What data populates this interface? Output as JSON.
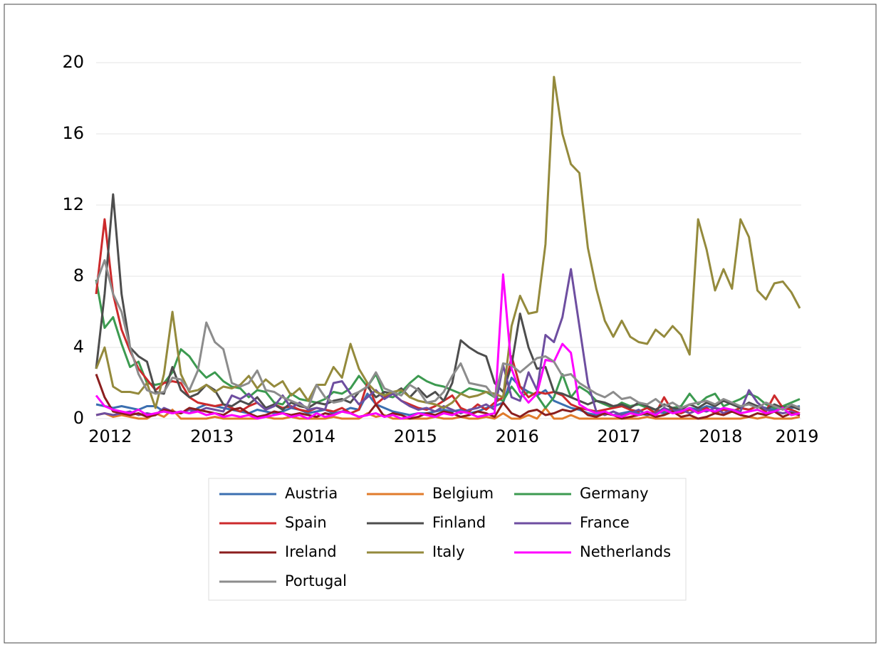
{
  "chart_data": {
    "type": "line",
    "categories": [
      null,
      null,
      "2012",
      null,
      null,
      null,
      null,
      null,
      null,
      null,
      null,
      null,
      null,
      null,
      "2013",
      null,
      null,
      null,
      null,
      null,
      null,
      null,
      null,
      null,
      null,
      null,
      "2014",
      null,
      null,
      null,
      null,
      null,
      null,
      null,
      null,
      null,
      null,
      null,
      "2015",
      null,
      null,
      null,
      null,
      null,
      null,
      null,
      null,
      null,
      null,
      null,
      "2016",
      null,
      null,
      null,
      null,
      null,
      null,
      null,
      null,
      null,
      null,
      null,
      "2017",
      null,
      null,
      null,
      null,
      null,
      null,
      null,
      null,
      null,
      null,
      null,
      "2018",
      null,
      null,
      null,
      null,
      null,
      null,
      null,
      null,
      "2019"
    ],
    "ylim": [
      0,
      20
    ],
    "yticks": [
      0,
      4,
      8,
      12,
      16,
      20
    ],
    "grid": true,
    "legend": "bottom",
    "series": [
      {
        "name": "Austria",
        "color": "#3b6fb0",
        "values": [
          0.8,
          0.7,
          0.6,
          0.7,
          0.6,
          0.5,
          0.7,
          0.7,
          0.4,
          0.3,
          0.4,
          0.3,
          0.6,
          0.8,
          0.7,
          0.6,
          0.5,
          0.4,
          0.3,
          0.5,
          0.4,
          0.3,
          0.4,
          0.6,
          0.5,
          0.3,
          0.4,
          0.5,
          0.3,
          0.4,
          0.6,
          0.5,
          1.4,
          0.8,
          0.6,
          0.4,
          0.3,
          0.2,
          0.3,
          0.3,
          0.4,
          0.5,
          0.4,
          0.5,
          0.3,
          0.4,
          0.6,
          0.7,
          0.9,
          2.3,
          1.8,
          1.5,
          1.3,
          1.6,
          1.0,
          0.8,
          0.6,
          0.5,
          0.3,
          0.2,
          0.3,
          0.2,
          0.3,
          0.4,
          0.3,
          0.2,
          0.4,
          0.3,
          0.5,
          0.4,
          0.6,
          0.5,
          0.7,
          0.6,
          0.5,
          0.4,
          0.6,
          0.5,
          0.7,
          0.6,
          0.5,
          0.7,
          0.6,
          0.7
        ]
      },
      {
        "name": "Belgium",
        "color": "#e07b2b",
        "values": [
          0.2,
          0.3,
          0.1,
          0.2,
          0.1,
          0,
          0,
          0.3,
          0.1,
          0.5,
          0,
          0,
          0,
          0,
          0.1,
          0,
          0,
          0,
          0,
          0,
          0.1,
          0,
          0,
          0.1,
          0,
          0,
          0,
          0,
          0.1,
          0,
          0,
          0,
          0.3,
          0.1,
          0.2,
          0,
          0,
          0,
          0,
          0,
          0.1,
          0,
          0,
          0.1,
          0,
          0,
          0.1,
          0,
          0.3,
          0,
          0,
          0.2,
          0,
          0.6,
          0,
          0,
          0.2,
          0,
          0,
          0,
          0,
          0,
          0,
          0,
          0,
          0.1,
          0,
          0,
          0,
          0,
          0,
          0,
          0,
          0,
          0,
          0,
          0,
          0.1,
          0,
          0.1,
          0,
          0,
          0,
          0.1
        ]
      },
      {
        "name": "Germany",
        "color": "#3c9a50",
        "values": [
          7.8,
          5.1,
          5.7,
          4.2,
          2.9,
          3.2,
          2.0,
          1.9,
          2.0,
          2.6,
          3.9,
          3.5,
          2.8,
          2.3,
          2.6,
          2.1,
          1.8,
          1.7,
          1.2,
          1.6,
          1.5,
          0.9,
          0.8,
          1.4,
          1.1,
          1.0,
          0.9,
          1.1,
          1.5,
          1.4,
          1.7,
          2.4,
          1.8,
          2.5,
          1.3,
          1.2,
          1.5,
          2.0,
          2.4,
          2.1,
          1.9,
          1.8,
          1.6,
          1.4,
          1.7,
          1.6,
          1.5,
          1.2,
          1.0,
          1.8,
          1.2,
          1.5,
          1.3,
          0.6,
          1.2,
          2.5,
          1.2,
          1.8,
          1.5,
          1.0,
          0.8,
          0.6,
          0.9,
          0.7,
          0.8,
          0.6,
          0.5,
          0.4,
          0.6,
          0.7,
          1.4,
          0.8,
          1.2,
          1.4,
          0.7,
          0.9,
          1.1,
          1.4,
          1.2,
          0.8,
          0.6,
          0.7,
          0.9,
          1.1
        ]
      },
      {
        "name": "Spain",
        "color": "#cc2a2c",
        "values": [
          7.0,
          11.2,
          7.0,
          5.0,
          3.8,
          2.8,
          2.2,
          1.6,
          2.0,
          2.1,
          2.0,
          1.2,
          0.9,
          0.8,
          0.7,
          0.8,
          0.6,
          0.4,
          0.7,
          0.9,
          0.5,
          0.8,
          0.6,
          0.7,
          0.5,
          0.4,
          0.6,
          0.5,
          0.4,
          0.6,
          0.3,
          0.5,
          2.0,
          0.8,
          1.2,
          1.4,
          1.0,
          0.8,
          0.6,
          0.5,
          0.7,
          1.0,
          1.3,
          0.6,
          0.4,
          0.8,
          0.5,
          0.9,
          1.2,
          3.5,
          1.8,
          1.2,
          1.5,
          1.4,
          1.5,
          1.3,
          0.8,
          0.6,
          0.5,
          0.4,
          0.5,
          0.6,
          0.7,
          0.5,
          0.4,
          0.6,
          0.3,
          1.2,
          0.4,
          0.3,
          0.5,
          0.4,
          0.6,
          0.3,
          0.5,
          0.4,
          0.6,
          0.5,
          0.7,
          0.4,
          1.3,
          0.6,
          0.5,
          0.3
        ]
      },
      {
        "name": "Finland",
        "color": "#4d4d4d",
        "values": [
          2.8,
          7.0,
          12.6,
          7.0,
          4.0,
          3.5,
          3.2,
          1.5,
          1.4,
          2.9,
          1.6,
          1.2,
          1.4,
          1.9,
          1.6,
          0.8,
          0.7,
          1.0,
          0.8,
          1.2,
          0.6,
          0.8,
          0.5,
          0.9,
          0.7,
          0.6,
          0.9,
          0.8,
          1.0,
          1.1,
          0.9,
          1.5,
          1.8,
          1.2,
          1.5,
          1.4,
          1.7,
          1.2,
          1.7,
          1.2,
          1.5,
          1.0,
          2.0,
          4.4,
          4.0,
          3.7,
          3.5,
          2.0,
          1.5,
          3.0,
          5.9,
          4.0,
          2.8,
          2.9,
          1.5,
          1.4,
          1.2,
          1.0,
          0.8,
          1.0,
          0.9,
          0.7,
          0.8,
          0.6,
          0.9,
          0.7,
          0.5,
          0.8,
          0.6,
          0.5,
          0.8,
          0.6,
          0.9,
          0.7,
          1.0,
          0.8,
          0.6,
          0.9,
          0.7,
          0.5,
          0.8,
          0.6,
          0.7,
          0.5
        ]
      },
      {
        "name": "France",
        "color": "#6e4ea0",
        "values": [
          0.2,
          0.3,
          0.2,
          0.3,
          0.4,
          0.2,
          0.3,
          0.2,
          0.6,
          0.4,
          0.3,
          0.5,
          0.4,
          0.6,
          0.5,
          0.4,
          1.3,
          1.1,
          1.4,
          0.9,
          0.5,
          0.7,
          1.3,
          0.6,
          0.9,
          0.5,
          0.6,
          0.5,
          2.0,
          2.1,
          1.4,
          0.8,
          1.2,
          1.6,
          1.1,
          1.4,
          1.0,
          0.7,
          0.5,
          0.6,
          0.4,
          0.7,
          0.5,
          0.3,
          0.5,
          0.6,
          0.8,
          0.5,
          3.0,
          1.2,
          1.0,
          2.6,
          1.6,
          4.7,
          4.3,
          5.7,
          8.4,
          5.2,
          2.0,
          0.4,
          0.2,
          0.4,
          0.2,
          0.3,
          0.5,
          0.2,
          0.3,
          0.6,
          0.4,
          0.5,
          0.3,
          0.5,
          0.4,
          0.6,
          0.3,
          0.5,
          0.4,
          1.6,
          0.9,
          0.5,
          0.4,
          0.3,
          0.4,
          0.2
        ]
      },
      {
        "name": "Ireland",
        "color": "#8b1e1e",
        "values": [
          2.5,
          1.2,
          0.4,
          0.3,
          0.2,
          0.3,
          0.1,
          0.2,
          0.5,
          0.4,
          0.3,
          0.6,
          0.5,
          0.4,
          0.3,
          0.2,
          0.5,
          0.6,
          0.3,
          0.1,
          0.2,
          0.4,
          0.3,
          0.2,
          0.3,
          0.2,
          0.1,
          0.3,
          0.2,
          0.4,
          0.3,
          0.1,
          0.2,
          0.8,
          0.1,
          0.3,
          0.2,
          0,
          0.1,
          0.3,
          0.2,
          0.4,
          0.3,
          0.1,
          0.2,
          0.4,
          0.3,
          0.1,
          0.9,
          0.3,
          0.1,
          0.4,
          0.5,
          0.2,
          0.3,
          0.5,
          0.4,
          0.6,
          0.2,
          0.1,
          0.3,
          0.2,
          0,
          0.1,
          0.2,
          0.3,
          0.1,
          0.2,
          0.4,
          0.1,
          0.2,
          0,
          0.1,
          0.3,
          0.2,
          0.4,
          0.2,
          0.1,
          0.3,
          0.2,
          0.4,
          0.1,
          0.3,
          0.2
        ]
      },
      {
        "name": "Italy",
        "color": "#948a3c",
        "values": [
          2.8,
          4.0,
          1.8,
          1.5,
          1.5,
          1.4,
          2.0,
          0.6,
          2.5,
          6.0,
          2.5,
          1.5,
          1.6,
          1.9,
          1.5,
          1.8,
          1.7,
          1.9,
          2.4,
          1.7,
          2.2,
          1.8,
          2.1,
          1.3,
          1.7,
          1.0,
          1.9,
          1.9,
          2.9,
          2.3,
          4.2,
          2.8,
          2.0,
          1.5,
          1.3,
          1.5,
          1.6,
          1.2,
          1.0,
          0.9,
          0.8,
          0.6,
          0.9,
          1.4,
          1.2,
          1.3,
          1.5,
          1.4,
          1.2,
          5.2,
          6.9,
          5.9,
          6.0,
          9.8,
          19.2,
          16.0,
          14.3,
          13.8,
          9.6,
          7.3,
          5.5,
          4.6,
          5.5,
          4.6,
          4.3,
          4.2,
          5.0,
          4.6,
          5.2,
          4.7,
          3.6,
          11.2,
          9.5,
          7.2,
          8.4,
          7.3,
          11.2,
          10.2,
          7.2,
          6.7,
          7.6,
          7.7,
          7.1,
          6.2
        ]
      },
      {
        "name": "Netherlands",
        "color": "#ff00ff",
        "values": [
          1.3,
          0.7,
          0.5,
          0.4,
          0.3,
          0.5,
          0.2,
          0.3,
          0.4,
          0.3,
          0.4,
          0.3,
          0.4,
          0.2,
          0.3,
          0.1,
          0.2,
          0.1,
          0.2,
          0,
          0.1,
          0.2,
          0.3,
          0.1,
          0.2,
          0,
          0.3,
          0.1,
          0.2,
          0.4,
          0.3,
          0.1,
          0.2,
          0.3,
          0.1,
          0.2,
          0,
          0.1,
          0.3,
          0.2,
          0.1,
          0.3,
          0.2,
          0.4,
          0.3,
          0.1,
          0.2,
          0.3,
          8.1,
          2.8,
          1.5,
          0.9,
          1.4,
          3.3,
          3.2,
          4.2,
          3.7,
          0.8,
          0.5,
          0.3,
          0.4,
          0.2,
          0.1,
          0.3,
          0.2,
          0.4,
          0.2,
          0.5,
          0.3,
          0.4,
          0.6,
          0.3,
          0.5,
          0.4,
          0.6,
          0.5,
          0.3,
          0.4,
          0.5,
          0.3,
          0.4,
          0.6,
          0.2,
          0.3
        ]
      },
      {
        "name": "Portugal",
        "color": "#8c8c8c",
        "values": [
          7.6,
          8.9,
          7.0,
          6.0,
          4.0,
          2.5,
          1.6,
          1.4,
          1.5,
          2.3,
          2.2,
          1.6,
          2.7,
          5.4,
          4.3,
          3.9,
          2.0,
          1.8,
          2.0,
          2.7,
          1.6,
          1.5,
          1.2,
          1.0,
          0.8,
          0.6,
          1.9,
          1.2,
          0.9,
          1.0,
          1.3,
          1.5,
          1.8,
          2.6,
          1.7,
          1.5,
          1.3,
          1.9,
          1.6,
          0.9,
          1.0,
          1.5,
          2.4,
          3.1,
          2.0,
          1.9,
          1.8,
          1.2,
          3.1,
          3.0,
          2.6,
          3.0,
          3.4,
          3.5,
          3.2,
          2.4,
          2.5,
          2.0,
          1.7,
          1.4,
          1.2,
          1.5,
          1.1,
          1.2,
          0.9,
          0.8,
          1.1,
          0.7,
          0.9,
          0.6,
          0.8,
          0.9,
          1.0,
          0.8,
          1.1,
          0.9,
          0.7,
          0.8,
          0.6,
          0.9,
          0.7,
          0.5,
          0.8,
          0.6
        ]
      }
    ]
  }
}
